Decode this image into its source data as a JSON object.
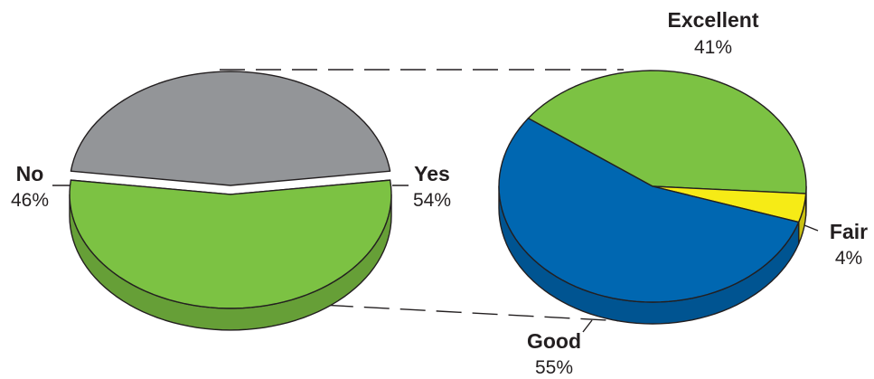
{
  "chart_data": [
    {
      "type": "pie",
      "categories": [
        "No",
        "Yes"
      ],
      "values": [
        46,
        54
      ],
      "labels": [
        "46%",
        "54%"
      ],
      "colors": [
        "#939598",
        "#7cc243"
      ],
      "exploded": "Yes"
    },
    {
      "type": "pie",
      "categories": [
        "Excellent",
        "Fair",
        "Good"
      ],
      "values": [
        41,
        4,
        55
      ],
      "labels": [
        "41%",
        "4%",
        "55%"
      ],
      "colors": [
        "#7cc243",
        "#f6eb16",
        "#0067b1"
      ],
      "breakdown_of": "Yes"
    }
  ]
}
